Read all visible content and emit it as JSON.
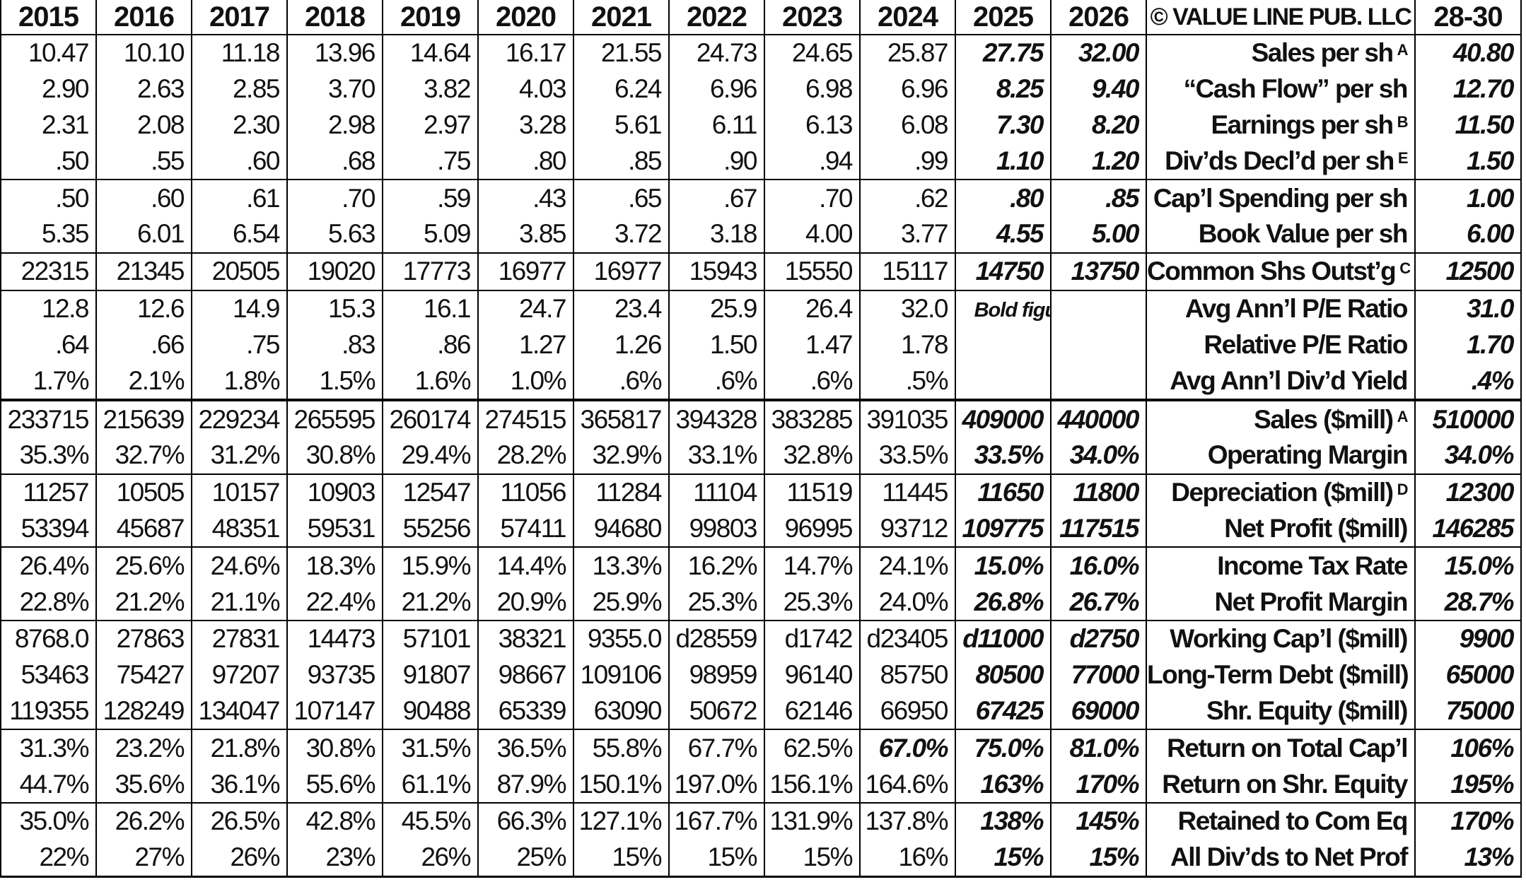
{
  "header": {
    "years": [
      "2015",
      "2016",
      "2017",
      "2018",
      "2019",
      "2020",
      "2021",
      "2022",
      "2023",
      "2024",
      "2025",
      "2026"
    ],
    "publisher": "© VALUE LINE PUB. LLC",
    "range": "28-30"
  },
  "note": "Bold figures are Value Line estimates",
  "rows": [
    {
      "label": "Sales per sh",
      "sup": "A",
      "values": [
        "10.47",
        "10.10",
        "11.18",
        "13.96",
        "14.64",
        "16.17",
        "21.55",
        "24.73",
        "24.65",
        "25.87",
        "27.75",
        "32.00"
      ],
      "range": "40.80"
    },
    {
      "label": "“Cash Flow” per sh",
      "sup": "",
      "values": [
        "2.90",
        "2.63",
        "2.85",
        "3.70",
        "3.82",
        "4.03",
        "6.24",
        "6.96",
        "6.98",
        "6.96",
        "8.25",
        "9.40"
      ],
      "range": "12.70"
    },
    {
      "label": "Earnings per sh",
      "sup": "B",
      "values": [
        "2.31",
        "2.08",
        "2.30",
        "2.98",
        "2.97",
        "3.28",
        "5.61",
        "6.11",
        "6.13",
        "6.08",
        "7.30",
        "8.20"
      ],
      "range": "11.50"
    },
    {
      "label": "Div’ds Decl’d per sh",
      "sup": "E",
      "values": [
        ".50",
        ".55",
        ".60",
        ".68",
        ".75",
        ".80",
        ".85",
        ".90",
        ".94",
        ".99",
        "1.10",
        "1.20"
      ],
      "range": "1.50"
    },
    {
      "label": "Cap’l Spending per sh",
      "sup": "",
      "values": [
        ".50",
        ".60",
        ".61",
        ".70",
        ".59",
        ".43",
        ".65",
        ".67",
        ".70",
        ".62",
        ".80",
        ".85"
      ],
      "range": "1.00"
    },
    {
      "label": "Book Value per sh",
      "sup": "",
      "values": [
        "5.35",
        "6.01",
        "6.54",
        "5.63",
        "5.09",
        "3.85",
        "3.72",
        "3.18",
        "4.00",
        "3.77",
        "4.55",
        "5.00"
      ],
      "range": "6.00"
    },
    {
      "label": "Common Shs Outst’g",
      "sup": "C",
      "values": [
        "22315",
        "21345",
        "20505",
        "19020",
        "17773",
        "16977",
        "16977",
        "15943",
        "15550",
        "15117",
        "14750",
        "13750"
      ],
      "range": "12500"
    },
    {
      "label": "Avg Ann’l P/E Ratio",
      "sup": "",
      "values": [
        "12.8",
        "12.6",
        "14.9",
        "15.3",
        "16.1",
        "24.7",
        "23.4",
        "25.9",
        "26.4",
        "32.0",
        "",
        ""
      ],
      "range": "31.0"
    },
    {
      "label": "Relative P/E Ratio",
      "sup": "",
      "values": [
        ".64",
        ".66",
        ".75",
        ".83",
        ".86",
        "1.27",
        "1.26",
        "1.50",
        "1.47",
        "1.78",
        "",
        ""
      ],
      "range": "1.70"
    },
    {
      "label": "Avg Ann’l Div’d Yield",
      "sup": "",
      "values": [
        "1.7%",
        "2.1%",
        "1.8%",
        "1.5%",
        "1.6%",
        "1.0%",
        ".6%",
        ".6%",
        ".6%",
        ".5%",
        "",
        ""
      ],
      "range": ".4%"
    },
    {
      "label": "Sales ($mill)",
      "sup": "A",
      "values": [
        "233715",
        "215639",
        "229234",
        "265595",
        "260174",
        "274515",
        "365817",
        "394328",
        "383285",
        "391035",
        "409000",
        "440000"
      ],
      "range": "510000"
    },
    {
      "label": "Operating Margin",
      "sup": "",
      "values": [
        "35.3%",
        "32.7%",
        "31.2%",
        "30.8%",
        "29.4%",
        "28.2%",
        "32.9%",
        "33.1%",
        "32.8%",
        "33.5%",
        "33.5%",
        "34.0%"
      ],
      "range": "34.0%"
    },
    {
      "label": "Depreciation ($mill)",
      "sup": "D",
      "values": [
        "11257",
        "10505",
        "10157",
        "10903",
        "12547",
        "11056",
        "11284",
        "11104",
        "11519",
        "11445",
        "11650",
        "11800"
      ],
      "range": "12300"
    },
    {
      "label": "Net Profit ($mill)",
      "sup": "",
      "values": [
        "53394",
        "45687",
        "48351",
        "59531",
        "55256",
        "57411",
        "94680",
        "99803",
        "96995",
        "93712",
        "109775",
        "117515"
      ],
      "range": "146285"
    },
    {
      "label": "Income Tax Rate",
      "sup": "",
      "values": [
        "26.4%",
        "25.6%",
        "24.6%",
        "18.3%",
        "15.9%",
        "14.4%",
        "13.3%",
        "16.2%",
        "14.7%",
        "24.1%",
        "15.0%",
        "16.0%"
      ],
      "range": "15.0%"
    },
    {
      "label": "Net Profit Margin",
      "sup": "",
      "values": [
        "22.8%",
        "21.2%",
        "21.1%",
        "22.4%",
        "21.2%",
        "20.9%",
        "25.9%",
        "25.3%",
        "25.3%",
        "24.0%",
        "26.8%",
        "26.7%"
      ],
      "range": "28.7%"
    },
    {
      "label": "Working Cap’l ($mill)",
      "sup": "",
      "values": [
        "8768.0",
        "27863",
        "27831",
        "14473",
        "57101",
        "38321",
        "9355.0",
        "d28559",
        "d1742",
        "d23405",
        "d11000",
        "d2750"
      ],
      "range": "9900"
    },
    {
      "label": "Long-Term Debt ($mill)",
      "sup": "",
      "values": [
        "53463",
        "75427",
        "97207",
        "93735",
        "91807",
        "98667",
        "109106",
        "98959",
        "96140",
        "85750",
        "80500",
        "77000"
      ],
      "range": "65000"
    },
    {
      "label": "Shr. Equity ($mill)",
      "sup": "",
      "values": [
        "119355",
        "128249",
        "134047",
        "107147",
        "90488",
        "65339",
        "63090",
        "50672",
        "62146",
        "66950",
        "67425",
        "69000"
      ],
      "range": "75000"
    },
    {
      "label": "Return on Total Cap’l",
      "sup": "",
      "values": [
        "31.3%",
        "23.2%",
        "21.8%",
        "30.8%",
        "31.5%",
        "36.5%",
        "55.8%",
        "67.7%",
        "62.5%",
        "67.0%",
        "75.0%",
        "81.0%"
      ],
      "range": "106%"
    },
    {
      "label": "Return on Shr. Equity",
      "sup": "",
      "values": [
        "44.7%",
        "35.6%",
        "36.1%",
        "55.6%",
        "61.1%",
        "87.9%",
        "150.1%",
        "197.0%",
        "156.1%",
        "164.6%",
        "163%",
        "170%"
      ],
      "range": "195%"
    },
    {
      "label": "Retained to Com Eq",
      "sup": "",
      "values": [
        "35.0%",
        "26.2%",
        "26.5%",
        "42.8%",
        "45.5%",
        "66.3%",
        "127.1%",
        "167.7%",
        "131.9%",
        "137.8%",
        "138%",
        "145%"
      ],
      "range": "170%"
    },
    {
      "label": "All Div’ds to Net Prof",
      "sup": "",
      "values": [
        "22%",
        "27%",
        "26%",
        "23%",
        "26%",
        "25%",
        "15%",
        "15%",
        "15%",
        "16%",
        "15%",
        "15%"
      ],
      "range": "13%"
    }
  ]
}
